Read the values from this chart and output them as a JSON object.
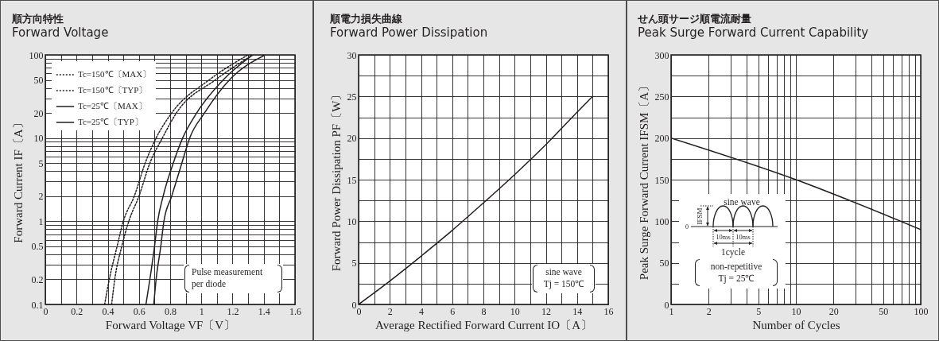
{
  "chart_data": [
    {
      "type": "line",
      "title": "順方向特性",
      "subtitle": "Forward Voltage",
      "xlabel": "Forward Voltage VF〔V〕",
      "ylabel": "Forward Current IF〔A〕",
      "log": "y",
      "grid": true,
      "legend": "top left",
      "xlim": [
        0,
        1.6
      ],
      "ylim": [
        0.1,
        100
      ],
      "xticks": [
        0,
        {
          "value": 0.1,
          "label": null
        },
        0.2,
        {
          "value": 0.3,
          "label": null
        },
        0.4,
        {
          "value": 0.5,
          "label": null
        },
        0.6,
        {
          "value": 0.7,
          "label": null
        },
        0.8,
        {
          "value": 0.9,
          "label": null
        },
        1,
        {
          "value": 1.1,
          "label": null
        },
        1.2,
        {
          "value": 1.3,
          "label": null
        },
        1.4,
        {
          "value": 1.5,
          "label": null
        },
        1.6
      ],
      "yticks": [
        0.1,
        0.2,
        {
          "value": 0.3,
          "label": null
        },
        {
          "value": 0.4,
          "label": null
        },
        0.5,
        {
          "value": 0.6,
          "label": null
        },
        {
          "value": 0.7,
          "label": null
        },
        {
          "value": 0.8,
          "label": null
        },
        {
          "value": 0.9,
          "label": null
        },
        1,
        2,
        {
          "value": 3,
          "label": null
        },
        {
          "value": 4,
          "label": null
        },
        5,
        {
          "value": 6,
          "label": null
        },
        {
          "value": 7,
          "label": null
        },
        {
          "value": 8,
          "label": null
        },
        {
          "value": 9,
          "label": null
        },
        10,
        20,
        {
          "value": 30,
          "label": null
        },
        {
          "value": 40,
          "label": null
        },
        50,
        {
          "value": 60,
          "label": null
        },
        {
          "value": 70,
          "label": null
        },
        {
          "value": 80,
          "label": null
        },
        {
          "value": 90,
          "label": null
        },
        100
      ],
      "series": [
        {
          "name": "Tc=150℃〔MAX〕",
          "color": "#231f20",
          "line_style": "dotted",
          "x": [
            0.425,
            0.445,
            0.49,
            0.535,
            0.6,
            0.67,
            0.75,
            0.84,
            1.09,
            1.33
          ],
          "values": [
            0.1,
            0.2,
            0.5,
            1,
            2,
            5,
            10,
            20,
            50,
            100
          ]
        },
        {
          "name": "Tc=150℃〔TYP〕",
          "color": "#231f20",
          "line_style": "dotted",
          "x": [
            0.38,
            0.41,
            0.46,
            0.5,
            0.57,
            0.64,
            0.71,
            0.81,
            1.05,
            1.3
          ],
          "values": [
            0.1,
            0.2,
            0.5,
            1,
            2,
            5,
            10,
            20,
            50,
            100
          ]
        },
        {
          "name": "Tc=25℃〔MAX〕",
          "color": "#231f20",
          "line_style": "solid",
          "x": [
            0.695,
            0.71,
            0.74,
            0.76,
            0.81,
            0.875,
            0.925,
            1.02,
            1.18,
            1.41
          ],
          "values": [
            0.1,
            0.2,
            0.5,
            1,
            2,
            5,
            10,
            20,
            50,
            100
          ]
        },
        {
          "name": "Tc=25℃〔TYP〕",
          "color": "#231f20",
          "line_style": "solid",
          "x": [
            0.645,
            0.67,
            0.7,
            0.72,
            0.755,
            0.82,
            0.88,
            0.97,
            1.14,
            1.33
          ],
          "values": [
            0.1,
            0.2,
            0.5,
            1,
            2,
            5,
            10,
            20,
            50,
            100
          ]
        }
      ],
      "annotations": [
        "Pulse measurement\nper diode"
      ]
    },
    {
      "type": "line",
      "title": "順電力損失曲線",
      "subtitle": "Forward Power Dissipation",
      "xlabel": "Average Rectified Forward Current IO〔A〕",
      "ylabel": "Forward Power Dissipation PF〔W〕",
      "grid": true,
      "xlim": [
        0,
        16
      ],
      "ylim": [
        0,
        30
      ],
      "xticks": [
        0,
        {
          "value": 1,
          "label": null
        },
        2,
        {
          "value": 3,
          "label": null
        },
        4,
        {
          "value": 5,
          "label": null
        },
        6,
        {
          "value": 7,
          "label": null
        },
        8,
        {
          "value": 9,
          "label": null
        },
        10,
        {
          "value": 11,
          "label": null
        },
        12,
        {
          "value": 13,
          "label": null
        },
        14,
        {
          "value": 15,
          "label": null
        },
        16
      ],
      "yticks": [
        0,
        {
          "value": 2.5,
          "label": null
        },
        5,
        {
          "value": 7.5,
          "label": null
        },
        10,
        {
          "value": 12.5,
          "label": null
        },
        15,
        {
          "value": 17.5,
          "label": null
        },
        20,
        {
          "value": 22.5,
          "label": null
        },
        25,
        {
          "value": 27.5,
          "label": null
        },
        30
      ],
      "series": [
        {
          "color": "#231f20",
          "line_style": "solid",
          "x": [
            0,
            2,
            4,
            6,
            8,
            10,
            12,
            14,
            15
          ],
          "values": [
            0,
            2.8,
            5.8,
            8.9,
            12.2,
            15.6,
            19.2,
            23.1,
            25
          ]
        }
      ],
      "annotations": [
        "sine wave\nTj = 150℃"
      ]
    },
    {
      "type": "line",
      "title": "せん頭サージ順電流耐量",
      "subtitle": "Peak Surge Forward Current Capability",
      "xlabel": "Number of Cycles",
      "ylabel": "Peak Surge Forward Current IFSM〔A〕",
      "log": "x",
      "grid": true,
      "xlim": [
        1,
        100
      ],
      "ylim": [
        0,
        300
      ],
      "xticks": [
        1,
        2,
        {
          "value": 3,
          "label": null
        },
        {
          "value": 4,
          "label": null
        },
        5,
        {
          "value": 6,
          "label": null
        },
        {
          "value": 7,
          "label": null
        },
        {
          "value": 8,
          "label": null
        },
        {
          "value": 9,
          "label": null
        },
        10,
        20,
        {
          "value": 30,
          "label": null
        },
        {
          "value": 40,
          "label": null
        },
        50,
        {
          "value": 60,
          "label": null
        },
        {
          "value": 70,
          "label": null
        },
        {
          "value": 80,
          "label": null
        },
        {
          "value": 90,
          "label": null
        },
        100
      ],
      "yticks": [
        0,
        {
          "value": 25,
          "label": null
        },
        50,
        {
          "value": 75,
          "label": null
        },
        100,
        {
          "value": 125,
          "label": null
        },
        150,
        {
          "value": 175,
          "label": null
        },
        200,
        {
          "value": 225,
          "label": null
        },
        250,
        {
          "value": 275,
          "label": null
        },
        300
      ],
      "series": [
        {
          "color": "#231f20",
          "line_style": "solid",
          "x": [
            1,
            10,
            100
          ],
          "values": [
            200,
            150,
            90
          ]
        }
      ],
      "annotations": [
        "sine wave",
        "IFSM",
        "0",
        "10ms",
        "10ms",
        "1cycle",
        "non-repetitive\nTj = 25℃"
      ]
    }
  ]
}
